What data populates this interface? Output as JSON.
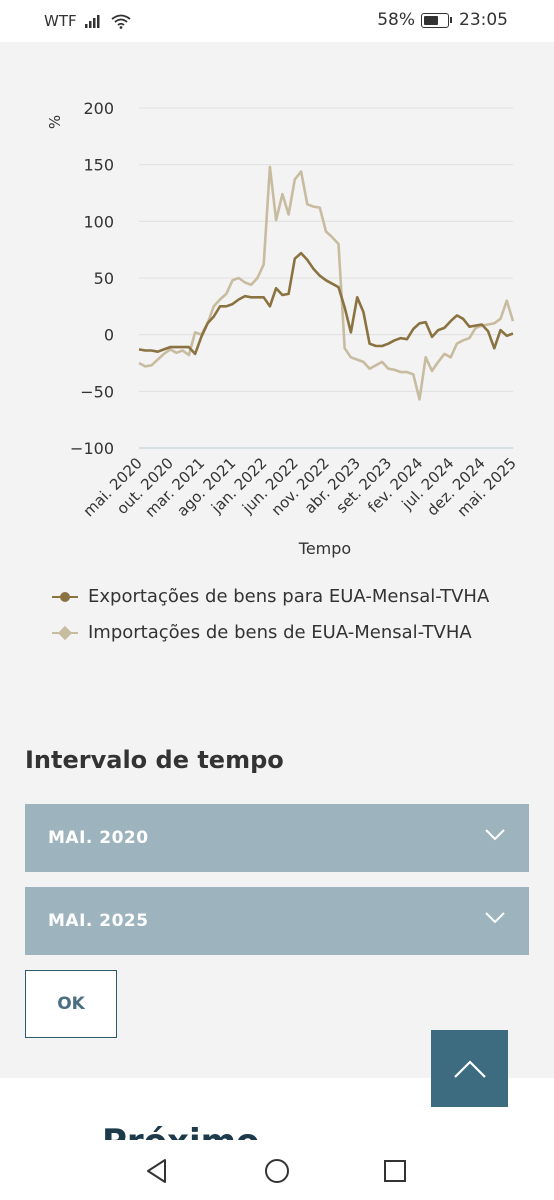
{
  "status_bar": {
    "carrier": "WTF",
    "battery": "58%",
    "time": "23:05"
  },
  "chart_data": {
    "type": "line",
    "ylabel": "%",
    "xlabel": "Tempo",
    "ylim": [
      -100,
      200
    ],
    "yticks": [
      200,
      150,
      100,
      50,
      0,
      -50,
      -100
    ],
    "xticks": [
      "mai. 2020",
      "out. 2020",
      "mar. 2021",
      "ago. 2021",
      "jan. 2022",
      "jun. 2022",
      "nov. 2022",
      "abr. 2023",
      "set. 2023",
      "fev. 2024",
      "jul. 2024",
      "dez. 2024",
      "mai. 2025"
    ],
    "n_points": 61,
    "grid": true,
    "legend_position": "bottom",
    "series": [
      {
        "name": "Exportações de bens para EUA-Mensal-TVHA",
        "color": "#8a7340",
        "values": [
          -13,
          -14,
          -14,
          -15,
          -13,
          -11,
          -11,
          -11,
          -11,
          -17,
          -2,
          10,
          16,
          25,
          25,
          27,
          31,
          34,
          33,
          33,
          33,
          25,
          41,
          35,
          36,
          67,
          72,
          66,
          58,
          52,
          48,
          45,
          42,
          24,
          2,
          33,
          20,
          -8,
          -10,
          -10,
          -8,
          -5,
          -3,
          -4,
          5,
          10,
          11,
          -2,
          4,
          6,
          12,
          17,
          14,
          7,
          8,
          9,
          3,
          -12,
          4,
          -1,
          1
        ]
      },
      {
        "name": "Importações de bens de EUA-Mensal-TVHA",
        "color": "#c8bca0",
        "values": [
          -25,
          -28,
          -27,
          -22,
          -17,
          -13,
          -16,
          -14,
          -18,
          2,
          0,
          10,
          25,
          31,
          36,
          48,
          50,
          46,
          44,
          50,
          62,
          148,
          101,
          124,
          106,
          137,
          144,
          115,
          113,
          112,
          91,
          86,
          80,
          -12,
          -20,
          -22,
          -24,
          -30,
          -27,
          -24,
          -30,
          -31,
          -33,
          -33,
          -35,
          -57,
          -20,
          -32,
          -24,
          -17,
          -20,
          -8,
          -5,
          -3,
          6,
          8,
          9,
          10,
          14,
          30,
          12
        ]
      }
    ]
  },
  "legend": {
    "export_label": "Exportações de bens para EUA-Mensal-TVHA",
    "import_label": "Importações de bens de EUA-Mensal-TVHA"
  },
  "interval": {
    "title": "Intervalo de tempo",
    "start_value": "MAI. 2020",
    "end_value": "MAI. 2025",
    "ok_label": "OK"
  },
  "next_section": {
    "heading_partial": "Próximo"
  },
  "icons": {
    "wifi": "wifi-icon",
    "signal": "signal-icon",
    "battery": "battery-icon",
    "chevron": "chevron-down-icon",
    "scroll_top": "chevron-up-icon",
    "back": "back-triangle-icon",
    "home": "home-circle-icon",
    "recents": "recents-square-icon"
  },
  "colors": {
    "export_series": "#8a7340",
    "import_series": "#c8bca0",
    "dropdown_bg": "#9db3be",
    "scroll_top_bg": "#3d6b80"
  }
}
